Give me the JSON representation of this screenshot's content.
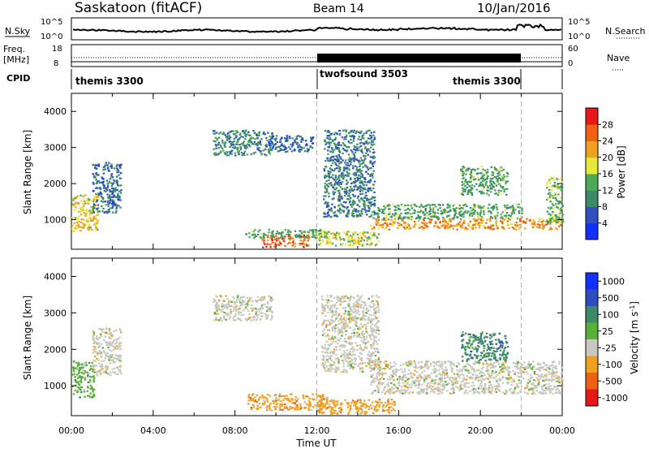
{
  "header": {
    "radar": "Saskatoon (fitACF)",
    "beam": "Beam 14",
    "date": "10/Jan/2016"
  },
  "top_panel": {
    "nsky_label": "N.Sky",
    "nsearch_label": "N.Search",
    "left_ticks": [
      "10^5",
      "10^0"
    ],
    "right_ticks": [
      "10^5",
      "10^0"
    ]
  },
  "freq_panel": {
    "freq_label": "Freq.",
    "unit_label": "[MHz]",
    "nave_label": "Nave",
    "left_ticks": [
      "18",
      "8"
    ],
    "right_ticks": [
      "60",
      "0"
    ]
  },
  "cpid": {
    "label": "CPID",
    "segments": [
      {
        "name": "themis 3300",
        "start": 0,
        "end": 12
      },
      {
        "name": "twofsound 3503",
        "start": 12,
        "end": 22
      },
      {
        "name": "themis 3300",
        "start": 22,
        "end": 24
      }
    ]
  },
  "chart_data": [
    {
      "type": "heatmap",
      "xlabel": "",
      "ylabel": "Slant Range [km]",
      "ylim": [
        180,
        4500
      ],
      "yticks": [
        1000,
        2000,
        3000,
        4000
      ],
      "colorbar": {
        "label": "Power [dB]",
        "ticks": [
          4,
          8,
          12,
          16,
          20,
          24,
          28
        ],
        "range": [
          0,
          32
        ],
        "colors": [
          "#1030ff",
          "#3050c0",
          "#3c8a68",
          "#4aaa58",
          "#e8e838",
          "#f0a020",
          "#f06010",
          "#e81818"
        ]
      },
      "regions": [
        {
          "x0": 0.0,
          "x1": 1.3,
          "y0": 700,
          "y1": 1700,
          "level": 20
        },
        {
          "x0": 1.0,
          "x1": 2.4,
          "y0": 1200,
          "y1": 2600,
          "level": 7
        },
        {
          "x0": 9.3,
          "x1": 11.6,
          "y0": 250,
          "y1": 600,
          "level": 28
        },
        {
          "x0": 8.5,
          "x1": 12.5,
          "y0": 500,
          "y1": 750,
          "level": 12
        },
        {
          "x0": 12.0,
          "x1": 15.0,
          "y0": 300,
          "y1": 700,
          "level": 18
        },
        {
          "x0": 14.6,
          "x1": 24.0,
          "y0": 750,
          "y1": 1050,
          "level": 24
        },
        {
          "x0": 14.6,
          "x1": 22.0,
          "y0": 1050,
          "y1": 1450,
          "level": 12
        },
        {
          "x0": 6.9,
          "x1": 9.8,
          "y0": 2800,
          "y1": 3500,
          "level": 9
        },
        {
          "x0": 9.6,
          "x1": 11.8,
          "y0": 2900,
          "y1": 3350,
          "level": 6
        },
        {
          "x0": 12.3,
          "x1": 14.8,
          "y0": 1100,
          "y1": 3500,
          "level": 8
        },
        {
          "x0": 19.0,
          "x1": 21.3,
          "y0": 1700,
          "y1": 2500,
          "level": 12
        },
        {
          "x0": 23.2,
          "x1": 24.0,
          "y0": 900,
          "y1": 2200,
          "level": 14
        }
      ]
    },
    {
      "type": "heatmap",
      "xlabel": "Time UT",
      "ylabel": "Slant Range [km]",
      "ylim": [
        180,
        4500
      ],
      "yticks": [
        1000,
        2000,
        3000,
        4000
      ],
      "xticks": [
        "00:00",
        "04:00",
        "08:00",
        "12:00",
        "16:00",
        "20:00",
        "00:00"
      ],
      "xlim": [
        0,
        24
      ],
      "colorbar": {
        "label": "Velocity [m s^-1]",
        "ticks": [
          1000,
          500,
          100,
          25,
          -25,
          -100,
          -500,
          -1000
        ],
        "colors": [
          "#1030ff",
          "#304ac0",
          "#3c8a68",
          "#58b038",
          "#c8c8c0",
          "#f0a020",
          "#f06010",
          "#e81818"
        ]
      },
      "regions": [
        {
          "x0": 0.0,
          "x1": 1.1,
          "y0": 700,
          "y1": 1700,
          "level": 3
        },
        {
          "x0": 1.0,
          "x1": 2.4,
          "y0": 1300,
          "y1": 2600,
          "level": 4
        },
        {
          "x0": 8.6,
          "x1": 12.5,
          "y0": 350,
          "y1": 800,
          "level": 5
        },
        {
          "x0": 12.0,
          "x1": 15.8,
          "y0": 250,
          "y1": 650,
          "level": 5
        },
        {
          "x0": 14.6,
          "x1": 24.0,
          "y0": 800,
          "y1": 1700,
          "level": 4
        },
        {
          "x0": 12.2,
          "x1": 15.0,
          "y0": 1400,
          "y1": 3500,
          "level": 4
        },
        {
          "x0": 6.9,
          "x1": 9.8,
          "y0": 2800,
          "y1": 3500,
          "level": 4
        },
        {
          "x0": 19.0,
          "x1": 21.3,
          "y0": 1700,
          "y1": 2500,
          "level": 2
        }
      ]
    }
  ]
}
